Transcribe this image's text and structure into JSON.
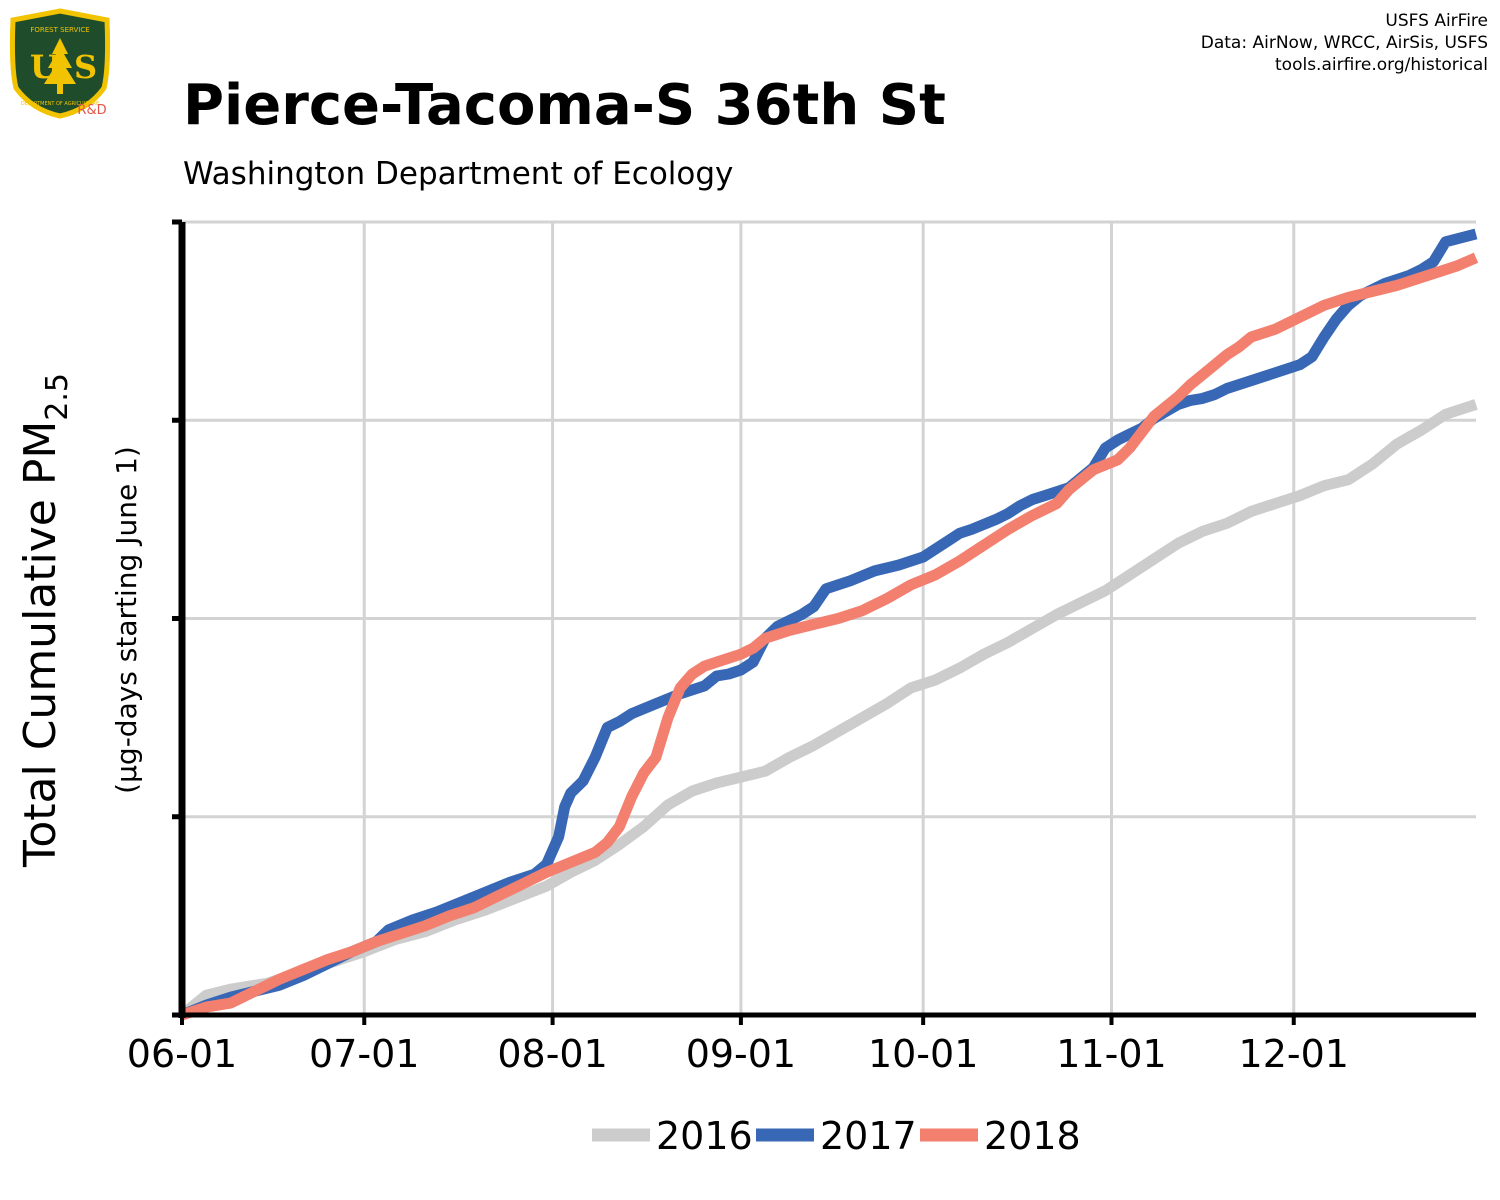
{
  "header": {
    "title": "Pierce-Tacoma-S 36th St",
    "subtitle": "Washington Department of Ecology",
    "credits": [
      "USFS AirFire",
      "Data: AirNow, WRCC, AirSis, USFS",
      "tools.airfire.org/historical"
    ]
  },
  "logo": {
    "top_text": "FOREST SERVICE",
    "letters": "US",
    "bottom_text": "DEPARTMENT OF AGRICULTURE",
    "tag": "R&D",
    "colors": {
      "shield": "#1f4d2b",
      "trim": "#f2c300",
      "tag": "#e4554a"
    }
  },
  "chart_data": {
    "type": "line",
    "title": "Pierce-Tacoma-S 36th St",
    "subtitle": "Washington Department of Ecology",
    "ylabel_main": "Total Cumulative PM",
    "ylabel_sub": "2.5",
    "ylabel_units": "(µg-days starting June 1)",
    "xlabel": "",
    "x_ticks": [
      "06-01",
      "07-01",
      "08-01",
      "09-01",
      "10-01",
      "11-01",
      "12-01"
    ],
    "x_tick_days": [
      0,
      30,
      61,
      92,
      122,
      153,
      183
    ],
    "xlim_days": [
      0,
      213
    ],
    "y_ticks": [
      0,
      1,
      2,
      3,
      4
    ],
    "y_tick_labels": [
      "",
      "",
      "",
      "",
      ""
    ],
    "ylim": [
      0,
      4
    ],
    "grid": true,
    "legend_position": "bottom",
    "series": [
      {
        "name": "2016",
        "color": "#cccccc",
        "x": [
          0,
          4,
          8,
          14,
          20,
          26,
          30,
          35,
          40,
          45,
          50,
          55,
          60,
          64,
          68,
          72,
          76,
          80,
          84,
          88,
          92,
          96,
          100,
          104,
          108,
          112,
          116,
          120,
          124,
          128,
          132,
          136,
          140,
          144,
          148,
          152,
          156,
          160,
          164,
          168,
          172,
          176,
          180,
          184,
          188,
          192,
          196,
          200,
          204,
          208,
          213
        ],
        "values": [
          0.0,
          0.1,
          0.13,
          0.16,
          0.22,
          0.28,
          0.32,
          0.38,
          0.42,
          0.48,
          0.53,
          0.59,
          0.65,
          0.72,
          0.78,
          0.86,
          0.95,
          1.06,
          1.13,
          1.17,
          1.2,
          1.23,
          1.3,
          1.36,
          1.43,
          1.5,
          1.57,
          1.65,
          1.69,
          1.75,
          1.82,
          1.88,
          1.95,
          2.02,
          2.08,
          2.14,
          2.22,
          2.3,
          2.38,
          2.44,
          2.48,
          2.54,
          2.58,
          2.62,
          2.67,
          2.7,
          2.78,
          2.88,
          2.95,
          3.03,
          3.08
        ]
      },
      {
        "name": "2017",
        "color": "#3868b5",
        "x": [
          0,
          4,
          8,
          12,
          16,
          20,
          24,
          28,
          32,
          34,
          38,
          42,
          46,
          50,
          54,
          58,
          60,
          62,
          63,
          64,
          66,
          68,
          70,
          72,
          74,
          78,
          82,
          86,
          88,
          90,
          92,
          94,
          96,
          98,
          100,
          102,
          104,
          106,
          108,
          110,
          114,
          118,
          120,
          122,
          124,
          126,
          128,
          130,
          134,
          136,
          138,
          140,
          142,
          146,
          148,
          150,
          152,
          154,
          156,
          158,
          160,
          164,
          166,
          168,
          170,
          172,
          176,
          180,
          184,
          186,
          188,
          190,
          192,
          194,
          196,
          198,
          200,
          202,
          204,
          206,
          208,
          213
        ],
        "values": [
          0.0,
          0.05,
          0.09,
          0.12,
          0.15,
          0.2,
          0.26,
          0.32,
          0.37,
          0.43,
          0.48,
          0.52,
          0.57,
          0.62,
          0.67,
          0.71,
          0.76,
          0.9,
          1.05,
          1.12,
          1.18,
          1.3,
          1.45,
          1.48,
          1.52,
          1.57,
          1.62,
          1.66,
          1.71,
          1.72,
          1.74,
          1.78,
          1.9,
          1.96,
          1.99,
          2.02,
          2.06,
          2.15,
          2.17,
          2.19,
          2.24,
          2.27,
          2.29,
          2.31,
          2.35,
          2.39,
          2.43,
          2.45,
          2.5,
          2.53,
          2.57,
          2.6,
          2.62,
          2.66,
          2.71,
          2.76,
          2.86,
          2.9,
          2.93,
          2.96,
          3.01,
          3.08,
          3.1,
          3.11,
          3.13,
          3.16,
          3.2,
          3.24,
          3.28,
          3.32,
          3.42,
          3.51,
          3.58,
          3.63,
          3.66,
          3.69,
          3.71,
          3.73,
          3.76,
          3.8,
          3.9,
          3.94
        ]
      },
      {
        "name": "2018",
        "color": "#f37f6f",
        "x": [
          0,
          4,
          8,
          12,
          16,
          20,
          24,
          28,
          32,
          36,
          40,
          44,
          48,
          52,
          56,
          60,
          64,
          68,
          70,
          72,
          74,
          76,
          78,
          80,
          82,
          84,
          86,
          88,
          90,
          92,
          94,
          96,
          100,
          104,
          108,
          112,
          116,
          120,
          124,
          128,
          132,
          136,
          140,
          144,
          146,
          148,
          150,
          154,
          156,
          158,
          160,
          162,
          164,
          166,
          168,
          170,
          172,
          174,
          176,
          180,
          184,
          188,
          192,
          196,
          200,
          204,
          208,
          210,
          213
        ],
        "values": [
          0.0,
          0.04,
          0.06,
          0.12,
          0.18,
          0.23,
          0.28,
          0.32,
          0.37,
          0.41,
          0.45,
          0.5,
          0.54,
          0.6,
          0.66,
          0.72,
          0.77,
          0.82,
          0.87,
          0.95,
          1.1,
          1.22,
          1.3,
          1.5,
          1.65,
          1.72,
          1.76,
          1.78,
          1.8,
          1.82,
          1.85,
          1.9,
          1.94,
          1.97,
          2.0,
          2.04,
          2.1,
          2.17,
          2.22,
          2.29,
          2.37,
          2.45,
          2.52,
          2.58,
          2.65,
          2.7,
          2.75,
          2.8,
          2.86,
          2.94,
          3.02,
          3.07,
          3.12,
          3.18,
          3.23,
          3.28,
          3.33,
          3.37,
          3.42,
          3.46,
          3.52,
          3.58,
          3.62,
          3.65,
          3.68,
          3.72,
          3.76,
          3.78,
          3.82
        ]
      }
    ]
  }
}
